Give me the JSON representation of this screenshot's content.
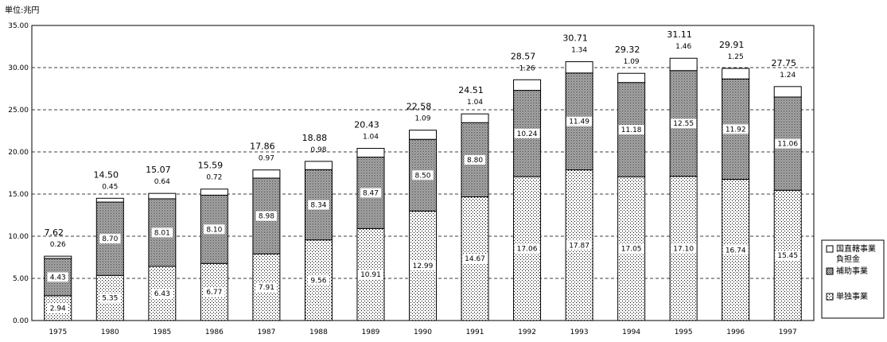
{
  "unit_label": "単位:兆円",
  "colors": {
    "axis": "#000000",
    "gridline": "#000000",
    "bar_outline": "#000000",
    "top_segment_fill": "#ffffff"
  },
  "chart_data": {
    "type": "bar",
    "stacked": true,
    "title": "",
    "xlabel": "",
    "ylabel": "",
    "ylim": [
      0,
      35
    ],
    "yticks": [
      "0.00",
      "5.00",
      "10.00",
      "15.00",
      "20.00",
      "25.00",
      "30.00",
      "35.00"
    ],
    "ytick_values": [
      0,
      5,
      10,
      15,
      20,
      25,
      30,
      35
    ],
    "grid": "horizontal dashed",
    "legend_position": "right",
    "categories": [
      "1975",
      "1980",
      "1985",
      "1986",
      "1987",
      "1988",
      "1989",
      "1990",
      "1991",
      "1992",
      "1993",
      "1994",
      "1995",
      "1996",
      "1997"
    ],
    "series": [
      {
        "name": "単独事業",
        "pattern": "fine-dots",
        "values": [
          2.94,
          5.35,
          6.43,
          6.77,
          7.91,
          9.56,
          10.91,
          12.99,
          14.67,
          17.06,
          17.87,
          17.05,
          17.1,
          16.74,
          15.45
        ],
        "labels": [
          "2.94",
          "5.35",
          "6.43",
          "6.77",
          "7.91",
          "9.56",
          "10.91",
          "12.99",
          "14.67",
          "17.06",
          "17.87",
          "17.05",
          "17.10",
          "16.74",
          "15.45"
        ]
      },
      {
        "name": "補助事業",
        "pattern": "dense-grid",
        "values": [
          4.43,
          8.7,
          8.01,
          8.1,
          8.98,
          8.34,
          8.47,
          8.5,
          8.8,
          10.24,
          11.49,
          11.18,
          12.55,
          11.92,
          11.06
        ],
        "labels": [
          "4.43",
          "8.70",
          "8.01",
          "8.10",
          "8.98",
          "8.34",
          "8.47",
          "8.50",
          "8.80",
          "10.24",
          "11.49",
          "11.18",
          "12.55",
          "11.92",
          "11.06"
        ]
      },
      {
        "name": "国直轄事業\n負担金",
        "pattern": "white",
        "values": [
          0.26,
          0.45,
          0.64,
          0.72,
          0.97,
          0.98,
          1.04,
          1.09,
          1.04,
          1.26,
          1.34,
          1.09,
          1.46,
          1.25,
          1.24
        ],
        "labels": [
          "0.26",
          "0.45",
          "0.64",
          "0.72",
          "0.97",
          "0.98",
          "1.04",
          "1.09",
          "1.04",
          "1.26",
          "1.34",
          "1.09",
          "1.46",
          "1.25",
          "1.24"
        ]
      }
    ],
    "totals": [
      7.62,
      14.5,
      15.07,
      15.59,
      17.86,
      18.88,
      20.43,
      22.58,
      24.51,
      28.57,
      30.71,
      29.32,
      31.11,
      29.91,
      27.75
    ],
    "total_labels": [
      "7.62",
      "14.50",
      "15.07",
      "15.59",
      "17.86",
      "18.88",
      "20.43",
      "22.58",
      "24.51",
      "28.57",
      "30.71",
      "29.32",
      "31.11",
      "29.91",
      "27.75"
    ],
    "legend": [
      {
        "name": "国直轄事業\n負担金",
        "lines": [
          "国直轄事業",
          "負担金"
        ],
        "pattern": "white"
      },
      {
        "name": "補助事業",
        "lines": [
          "補助事業"
        ],
        "pattern": "dense-grid"
      },
      {
        "name": "単独事業",
        "lines": [
          "単独事業"
        ],
        "pattern": "fine-dots"
      }
    ]
  }
}
